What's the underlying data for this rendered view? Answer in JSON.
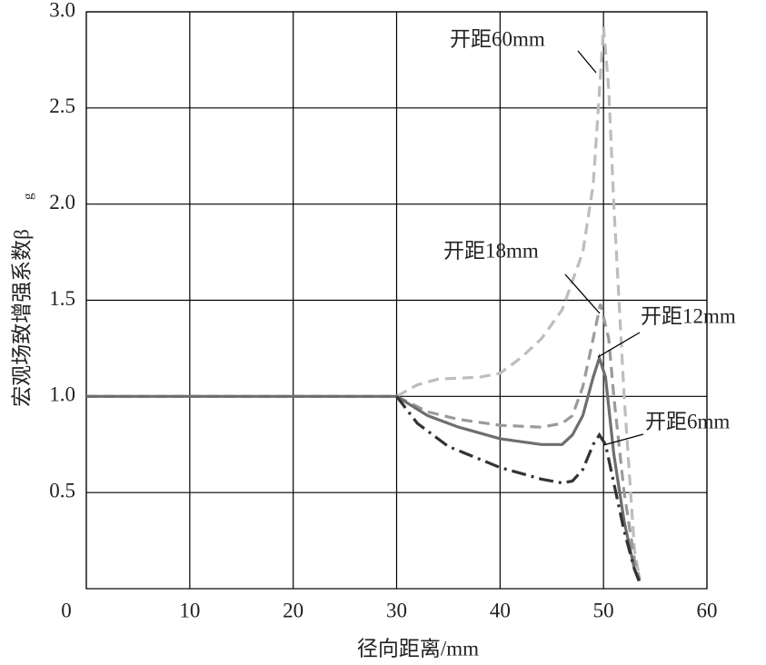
{
  "chart_data": {
    "type": "line",
    "xlabel": "径向距离/mm",
    "ylabel": "宏观场致增强系数β",
    "ylabel_sub": "g",
    "xlim": [
      0,
      60
    ],
    "xticks": [
      0,
      10,
      20,
      30,
      40,
      50,
      60
    ],
    "ylim": [
      0,
      3
    ],
    "yticks": [
      {
        "value": 0.5,
        "label": "0.5"
      },
      {
        "value": 1.0,
        "label": "1.0"
      },
      {
        "value": 1.5,
        "label": "1.5"
      },
      {
        "value": 2.0,
        "label": "2.0"
      },
      {
        "value": 2.5,
        "label": "2.5"
      },
      {
        "value": 3.0,
        "label": "3.0"
      }
    ],
    "grid": true,
    "series": [
      {
        "name": "开距60mm",
        "color": "#bdbdbd",
        "dash": "12,7",
        "x": [
          0,
          30,
          32,
          34,
          38,
          40,
          42,
          44,
          46,
          48,
          49,
          49.5,
          50,
          50.5,
          51,
          52,
          53,
          53.5
        ],
        "values": [
          1.0,
          1.0,
          1.06,
          1.09,
          1.1,
          1.12,
          1.2,
          1.3,
          1.45,
          1.75,
          2.1,
          2.5,
          2.92,
          2.6,
          2.0,
          1.0,
          0.2,
          0.05
        ]
      },
      {
        "name": "开距18mm",
        "color": "#9a9a9a",
        "dash": "12,7",
        "x": [
          0,
          30,
          33,
          36,
          40,
          44,
          46,
          47,
          48,
          49,
          49.7,
          50.5,
          51,
          52,
          53,
          53.5
        ],
        "values": [
          1.0,
          1.0,
          0.92,
          0.88,
          0.85,
          0.84,
          0.86,
          0.9,
          1.05,
          1.3,
          1.48,
          1.3,
          1.0,
          0.5,
          0.15,
          0.05
        ]
      },
      {
        "name": "开距12mm",
        "color": "#6e6e6e",
        "dash": "none",
        "x": [
          0,
          30,
          33,
          36,
          40,
          44,
          46,
          47,
          48,
          49,
          49.6,
          50.2,
          51,
          52,
          53,
          53.5
        ],
        "values": [
          1.0,
          1.0,
          0.9,
          0.84,
          0.78,
          0.75,
          0.75,
          0.8,
          0.9,
          1.1,
          1.2,
          1.1,
          0.7,
          0.35,
          0.1,
          0.04
        ]
      },
      {
        "name": "开距6mm",
        "color": "#333333",
        "dash": "16,6,3,6",
        "x": [
          30,
          32,
          35,
          40,
          44,
          46,
          47,
          48,
          49,
          49.6,
          50.2,
          51,
          52,
          53,
          53.5
        ],
        "values": [
          1.0,
          0.86,
          0.74,
          0.63,
          0.57,
          0.55,
          0.56,
          0.62,
          0.75,
          0.8,
          0.75,
          0.55,
          0.3,
          0.1,
          0.03
        ]
      }
    ]
  }
}
